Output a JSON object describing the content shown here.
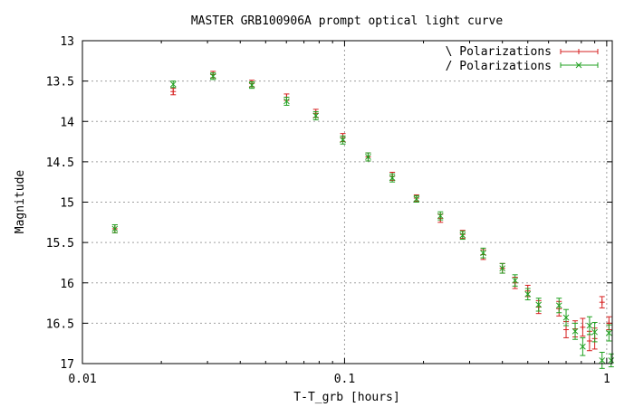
{
  "chart_data": {
    "type": "scatter",
    "title": "MASTER GRB100906A  prompt optical light curve",
    "xlabel": "T-T_grb [hours]",
    "ylabel": "Magnitude",
    "xscale": "log",
    "xlim": [
      0.01,
      1.05
    ],
    "ylim": [
      13,
      17
    ],
    "yreversed": true,
    "grid": true,
    "legend_position": "top-right",
    "x_ticks": [
      {
        "value": 0.01,
        "label": "0.01"
      },
      {
        "value": 0.1,
        "label": "0.1"
      },
      {
        "value": 1,
        "label": "1"
      }
    ],
    "y_ticks": [
      {
        "value": 13,
        "label": "13"
      },
      {
        "value": 13.5,
        "label": "13.5"
      },
      {
        "value": 14,
        "label": "14"
      },
      {
        "value": 14.5,
        "label": "14.5"
      },
      {
        "value": 15,
        "label": "15"
      },
      {
        "value": 15.5,
        "label": "15.5"
      },
      {
        "value": 16,
        "label": "16"
      },
      {
        "value": 16.5,
        "label": "16.5"
      },
      {
        "value": 17,
        "label": "17"
      }
    ],
    "series": [
      {
        "name": "\\ Polarizations",
        "color": "#d62020",
        "marker": "plus",
        "points": [
          {
            "x": 0.0133,
            "y": 15.33,
            "err": 0.05
          },
          {
            "x": 0.0222,
            "y": 13.63,
            "err": 0.04
          },
          {
            "x": 0.0315,
            "y": 13.42,
            "err": 0.04
          },
          {
            "x": 0.0443,
            "y": 13.53,
            "err": 0.04
          },
          {
            "x": 0.0601,
            "y": 13.7,
            "err": 0.04
          },
          {
            "x": 0.0777,
            "y": 13.9,
            "err": 0.05
          },
          {
            "x": 0.0985,
            "y": 14.2,
            "err": 0.05
          },
          {
            "x": 0.123,
            "y": 14.44,
            "err": 0.05
          },
          {
            "x": 0.1521,
            "y": 14.68,
            "err": 0.05
          },
          {
            "x": 0.1881,
            "y": 14.95,
            "err": 0.04
          },
          {
            "x": 0.2321,
            "y": 15.2,
            "err": 0.05
          },
          {
            "x": 0.2821,
            "y": 15.4,
            "err": 0.05
          },
          {
            "x": 0.338,
            "y": 15.65,
            "err": 0.06
          },
          {
            "x": 0.4,
            "y": 15.82,
            "err": 0.06
          },
          {
            "x": 0.447,
            "y": 16.0,
            "err": 0.07
          },
          {
            "x": 0.5,
            "y": 16.1,
            "err": 0.07
          },
          {
            "x": 0.55,
            "y": 16.3,
            "err": 0.08
          },
          {
            "x": 0.658,
            "y": 16.32,
            "err": 0.09
          },
          {
            "x": 0.7,
            "y": 16.58,
            "err": 0.1
          },
          {
            "x": 0.758,
            "y": 16.57,
            "err": 0.1
          },
          {
            "x": 0.81,
            "y": 16.55,
            "err": 0.11
          },
          {
            "x": 0.86,
            "y": 16.72,
            "err": 0.12
          },
          {
            "x": 0.9,
            "y": 16.69,
            "err": 0.13
          },
          {
            "x": 0.96,
            "y": 16.24,
            "err": 0.07
          },
          {
            "x": 1.02,
            "y": 16.5,
            "err": 0.08
          }
        ]
      },
      {
        "name": "/ Polarizations",
        "color": "#20a020",
        "marker": "cross",
        "points": [
          {
            "x": 0.0133,
            "y": 15.33,
            "err": 0.05
          },
          {
            "x": 0.0222,
            "y": 13.54,
            "err": 0.04
          },
          {
            "x": 0.0315,
            "y": 13.44,
            "err": 0.04
          },
          {
            "x": 0.0443,
            "y": 13.55,
            "err": 0.04
          },
          {
            "x": 0.0601,
            "y": 13.75,
            "err": 0.05
          },
          {
            "x": 0.0777,
            "y": 13.93,
            "err": 0.05
          },
          {
            "x": 0.0985,
            "y": 14.23,
            "err": 0.05
          },
          {
            "x": 0.123,
            "y": 14.44,
            "err": 0.05
          },
          {
            "x": 0.1521,
            "y": 14.7,
            "err": 0.05
          },
          {
            "x": 0.1881,
            "y": 14.96,
            "err": 0.04
          },
          {
            "x": 0.2321,
            "y": 15.17,
            "err": 0.05
          },
          {
            "x": 0.2821,
            "y": 15.41,
            "err": 0.05
          },
          {
            "x": 0.338,
            "y": 15.63,
            "err": 0.06
          },
          {
            "x": 0.4,
            "y": 15.82,
            "err": 0.06
          },
          {
            "x": 0.447,
            "y": 15.97,
            "err": 0.07
          },
          {
            "x": 0.5,
            "y": 16.14,
            "err": 0.07
          },
          {
            "x": 0.55,
            "y": 16.27,
            "err": 0.08
          },
          {
            "x": 0.658,
            "y": 16.28,
            "err": 0.09
          },
          {
            "x": 0.7,
            "y": 16.43,
            "err": 0.1
          },
          {
            "x": 0.758,
            "y": 16.6,
            "err": 0.1
          },
          {
            "x": 0.81,
            "y": 16.79,
            "err": 0.11
          },
          {
            "x": 0.86,
            "y": 16.53,
            "err": 0.11
          },
          {
            "x": 0.9,
            "y": 16.61,
            "err": 0.12
          },
          {
            "x": 0.96,
            "y": 16.96,
            "err": 0.1
          },
          {
            "x": 1.02,
            "y": 16.62,
            "err": 0.1
          },
          {
            "x": 1.04,
            "y": 16.96,
            "err": 0.08
          }
        ]
      }
    ]
  }
}
